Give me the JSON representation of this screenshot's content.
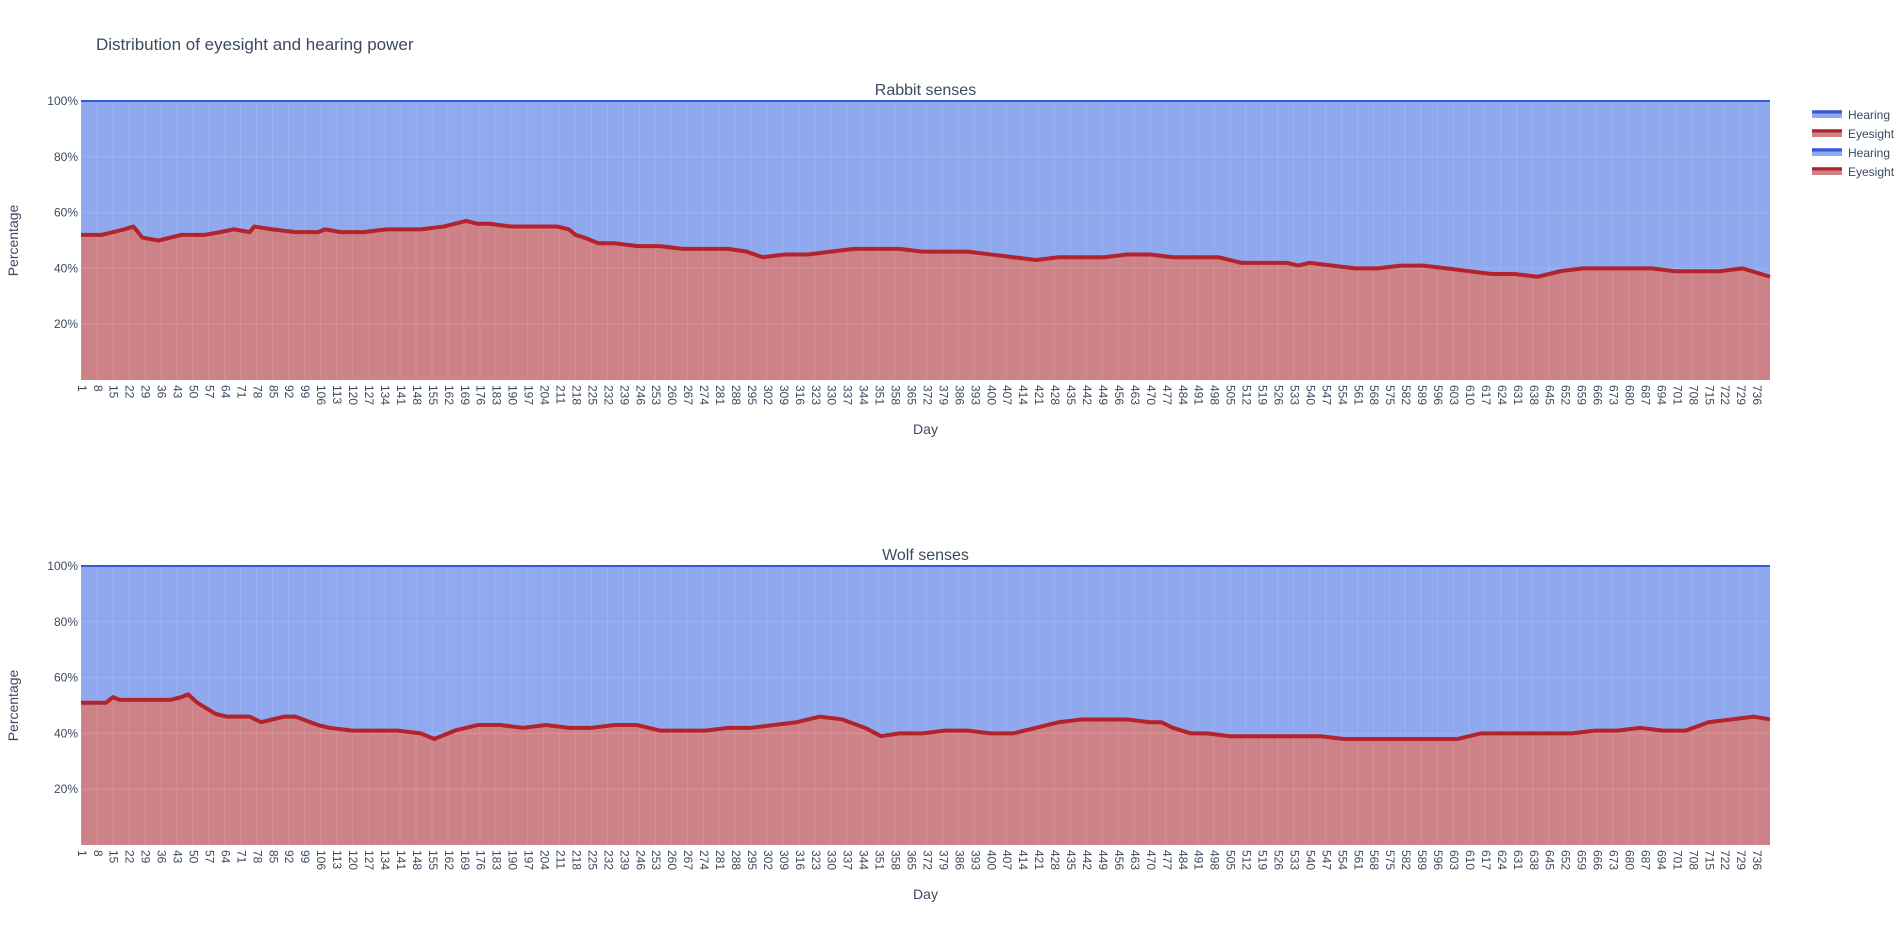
{
  "title": "Distribution of eyesight and hearing power",
  "colors": {
    "hearing_fill": "#8fa8ee",
    "hearing_line": "#3558d6",
    "eyesight_fill": "#cd8287",
    "eyesight_line": "#b2232c",
    "text": "#3b4a5f",
    "grid": "#aab8f0"
  },
  "legend": {
    "placement": "top-right",
    "items": [
      {
        "label": "Hearing",
        "color": "#3558d6",
        "fill": "#8fa8ee"
      },
      {
        "label": "Eyesight",
        "color": "#b2232c",
        "fill": "#cd8287"
      },
      {
        "label": "Hearing",
        "color": "#3558d6",
        "fill": "#8fa8ee"
      },
      {
        "label": "Eyesight",
        "color": "#b2232c",
        "fill": "#cd8287"
      }
    ]
  },
  "chart_data": [
    {
      "type": "area",
      "stacked": "percent",
      "title": "Rabbit senses",
      "xlabel": "Day",
      "ylabel": "Percentage",
      "xlim": [
        1,
        742
      ],
      "ylim": [
        0,
        100
      ],
      "yticks": [
        "20%",
        "40%",
        "60%",
        "80%",
        "100%"
      ],
      "ytick_values": [
        20,
        40,
        60,
        80,
        100
      ],
      "xtick_start": 1,
      "xtick_step": 7,
      "xtick_end": 736,
      "grid": true,
      "series": [
        {
          "name": "Eyesight",
          "x": [
            1,
            10,
            20,
            24,
            28,
            35,
            45,
            55,
            62,
            68,
            75,
            77,
            85,
            95,
            105,
            108,
            115,
            125,
            135,
            140,
            150,
            160,
            170,
            175,
            180,
            190,
            200,
            210,
            215,
            218,
            222,
            228,
            235,
            245,
            255,
            265,
            275,
            285,
            293,
            300,
            310,
            320,
            330,
            340,
            350,
            360,
            370,
            380,
            390,
            400,
            410,
            420,
            430,
            440,
            450,
            460,
            470,
            480,
            490,
            500,
            510,
            520,
            530,
            535,
            540,
            550,
            560,
            570,
            580,
            590,
            600,
            610,
            620,
            630,
            640,
            650,
            660,
            670,
            680,
            690,
            700,
            710,
            720,
            730,
            742
          ],
          "values": [
            52,
            52,
            54,
            55,
            51,
            50,
            52,
            52,
            53,
            54,
            53,
            55,
            54,
            53,
            53,
            54,
            53,
            53,
            54,
            54,
            54,
            55,
            57,
            56,
            56,
            55,
            55,
            55,
            54,
            52,
            51,
            49,
            49,
            48,
            48,
            47,
            47,
            47,
            46,
            44,
            45,
            45,
            46,
            47,
            47,
            47,
            46,
            46,
            46,
            45,
            44,
            43,
            44,
            44,
            44,
            45,
            45,
            44,
            44,
            44,
            42,
            42,
            42,
            41,
            42,
            41,
            40,
            40,
            41,
            41,
            40,
            39,
            38,
            38,
            37,
            39,
            40,
            40,
            40,
            40,
            39,
            39,
            39,
            40,
            37
          ]
        },
        {
          "name": "Hearing",
          "complement": true
        }
      ]
    },
    {
      "type": "area",
      "stacked": "percent",
      "title": "Wolf senses",
      "xlabel": "Day",
      "ylabel": "Percentage",
      "xlim": [
        1,
        742
      ],
      "ylim": [
        0,
        100
      ],
      "yticks": [
        "20%",
        "40%",
        "60%",
        "80%",
        "100%"
      ],
      "ytick_values": [
        20,
        40,
        60,
        80,
        100
      ],
      "xtick_start": 1,
      "xtick_step": 7,
      "xtick_end": 736,
      "grid": true,
      "series": [
        {
          "name": "Eyesight",
          "x": [
            1,
            5,
            12,
            15,
            18,
            22,
            30,
            40,
            45,
            48,
            52,
            60,
            65,
            75,
            80,
            85,
            90,
            95,
            105,
            110,
            120,
            130,
            140,
            150,
            156,
            165,
            175,
            185,
            195,
            205,
            215,
            225,
            235,
            245,
            255,
            265,
            275,
            285,
            295,
            305,
            315,
            325,
            335,
            345,
            352,
            360,
            370,
            380,
            390,
            400,
            405,
            410,
            420,
            430,
            440,
            450,
            460,
            470,
            475,
            480,
            488,
            495,
            505,
            515,
            525,
            535,
            545,
            555,
            565,
            575,
            585,
            595,
            605,
            615,
            625,
            635,
            645,
            655,
            665,
            675,
            685,
            695,
            705,
            715,
            725,
            735,
            742
          ],
          "values": [
            51,
            51,
            51,
            53,
            52,
            52,
            52,
            52,
            53,
            54,
            51,
            47,
            46,
            46,
            44,
            45,
            46,
            46,
            43,
            42,
            41,
            41,
            41,
            40,
            38,
            41,
            43,
            43,
            42,
            43,
            42,
            42,
            43,
            43,
            41,
            41,
            41,
            42,
            42,
            43,
            44,
            46,
            45,
            42,
            39,
            40,
            40,
            41,
            41,
            40,
            40,
            40,
            42,
            44,
            45,
            45,
            45,
            44,
            44,
            42,
            40,
            40,
            39,
            39,
            39,
            39,
            39,
            38,
            38,
            38,
            38,
            38,
            38,
            40,
            40,
            40,
            40,
            40,
            41,
            41,
            42,
            41,
            41,
            44,
            45,
            46,
            45
          ]
        },
        {
          "name": "Hearing",
          "complement": true
        }
      ]
    }
  ]
}
